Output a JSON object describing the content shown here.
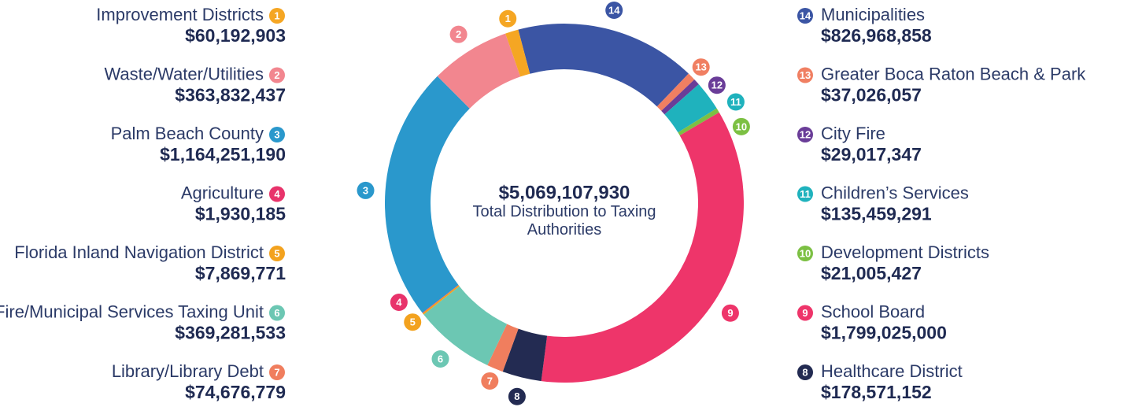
{
  "chart_data": {
    "type": "donut",
    "center_value": "$5,069,107,930",
    "center_label": "Total Distribution to Taxing Authorities",
    "categories": [
      "Improvement Districts",
      "Waste/Water/Utilities",
      "Palm Beach County",
      "Agriculture",
      "Florida Inland Navigation District",
      "Fire/Municipal Services Taxing Unit",
      "Library/Library Debt",
      "Healthcare District",
      "School Board",
      "Development Districts",
      "Children’s Services",
      "City Fire",
      "Greater Boca Raton Beach & Park",
      "Municipalities"
    ],
    "numbers": [
      "1",
      "2",
      "3",
      "4",
      "5",
      "6",
      "7",
      "8",
      "9",
      "10",
      "11",
      "12",
      "13",
      "14"
    ],
    "values": [
      60192903,
      363832437,
      1164251190,
      1930185,
      7869771,
      369281533,
      74676779,
      178571152,
      1799025000,
      21005427,
      135459291,
      29017347,
      37026057,
      826968858
    ],
    "value_labels": [
      "$60,192,903",
      "$363,832,437",
      "$1,164,251,190",
      "$1,930,185",
      "$7,869,771",
      "$369,281,533",
      "$74,676,779",
      "$178,571,152",
      "$1,799,025,000",
      "$21,005,427",
      "$135,459,291",
      "$29,017,347",
      "$37,026,057",
      "$826,968,858"
    ],
    "colors": [
      "#f5a623",
      "#f2868f",
      "#2a98cc",
      "#e8336b",
      "#f3a21e",
      "#6cc7b3",
      "#f07e5e",
      "#232b52",
      "#ee356a",
      "#7cc043",
      "#1fb2bd",
      "#6a3d98",
      "#f07f62",
      "#3b55a4"
    ]
  }
}
